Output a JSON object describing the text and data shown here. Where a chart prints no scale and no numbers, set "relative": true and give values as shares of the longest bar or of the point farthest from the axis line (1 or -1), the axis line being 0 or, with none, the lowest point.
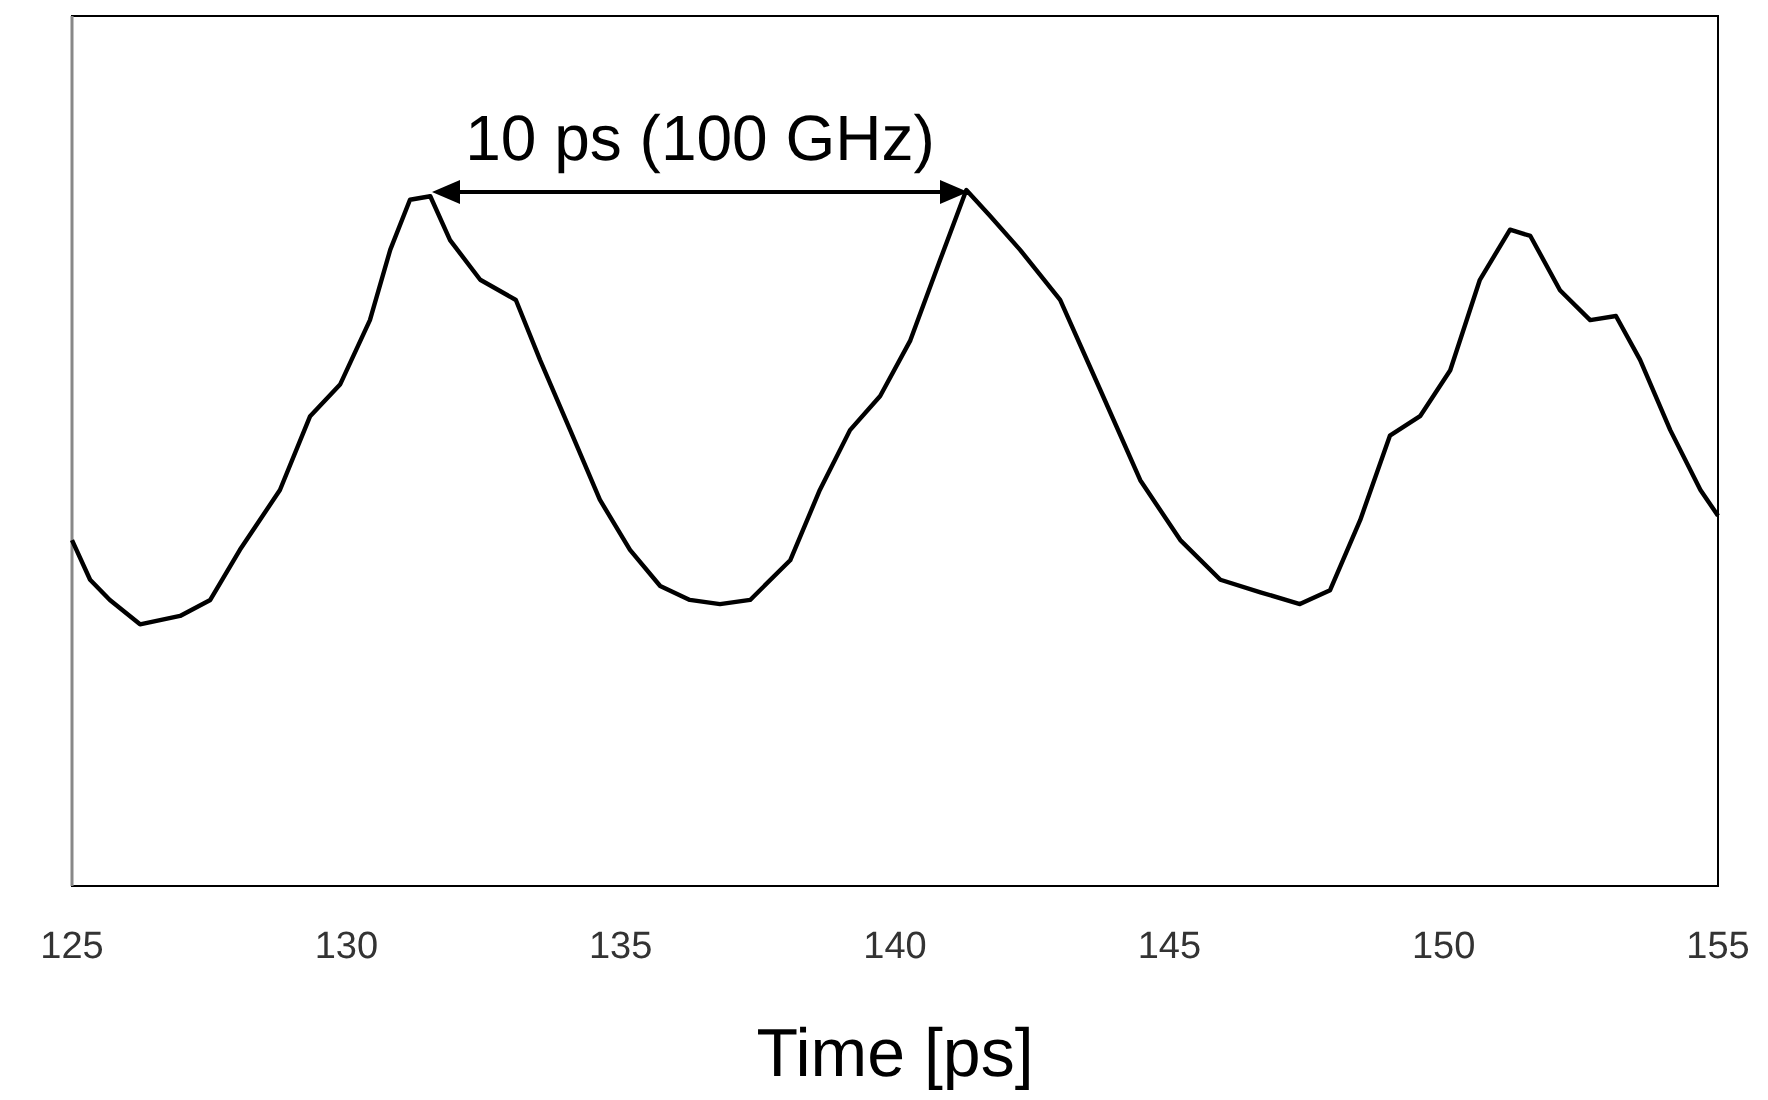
{
  "chart_data": {
    "type": "line",
    "xlabel": "Time [ps]",
    "relative": true,
    "xlim": [
      125,
      155
    ],
    "xticks": [
      125,
      130,
      135,
      140,
      145,
      150,
      155
    ],
    "marker": "none",
    "line_style": "solid",
    "annotations": [
      "10 ps (100 GHz)"
    ],
    "series": [
      {
        "color": "#000000",
        "x": [
          125.0,
          125.33,
          125.69,
          126.24,
          126.97,
          127.52,
          128.06,
          128.79,
          129.34,
          129.89,
          130.43,
          130.8,
          131.16,
          131.53,
          131.89,
          132.44,
          133.09,
          133.53,
          134.08,
          134.62,
          135.17,
          135.72,
          136.26,
          136.81,
          137.36,
          138.09,
          138.63,
          139.18,
          139.73,
          140.28,
          140.82,
          141.3,
          141.73,
          142.28,
          143.01,
          143.74,
          144.47,
          145.2,
          145.93,
          146.66,
          147.38,
          147.93,
          148.48,
          149.02,
          149.57,
          150.12,
          150.66,
          151.21,
          151.58,
          152.12,
          152.67,
          153.14,
          153.58,
          154.13,
          154.68,
          155.0
        ],
        "values": [
          0.497,
          0.44,
          0.411,
          0.376,
          0.388,
          0.411,
          0.483,
          0.569,
          0.675,
          0.721,
          0.813,
          0.914,
          0.986,
          0.991,
          0.928,
          0.871,
          0.842,
          0.756,
          0.655,
          0.555,
          0.483,
          0.431,
          0.411,
          0.405,
          0.411,
          0.468,
          0.569,
          0.655,
          0.704,
          0.784,
          0.899,
          1,
          0.963,
          0.914,
          0.842,
          0.713,
          0.583,
          0.497,
          0.44,
          0.422,
          0.405,
          0.425,
          0.526,
          0.647,
          0.675,
          0.741,
          0.871,
          0.943,
          0.934,
          0.856,
          0.813,
          0.819,
          0.756,
          0.655,
          0.569,
          0.532
        ]
      }
    ]
  }
}
